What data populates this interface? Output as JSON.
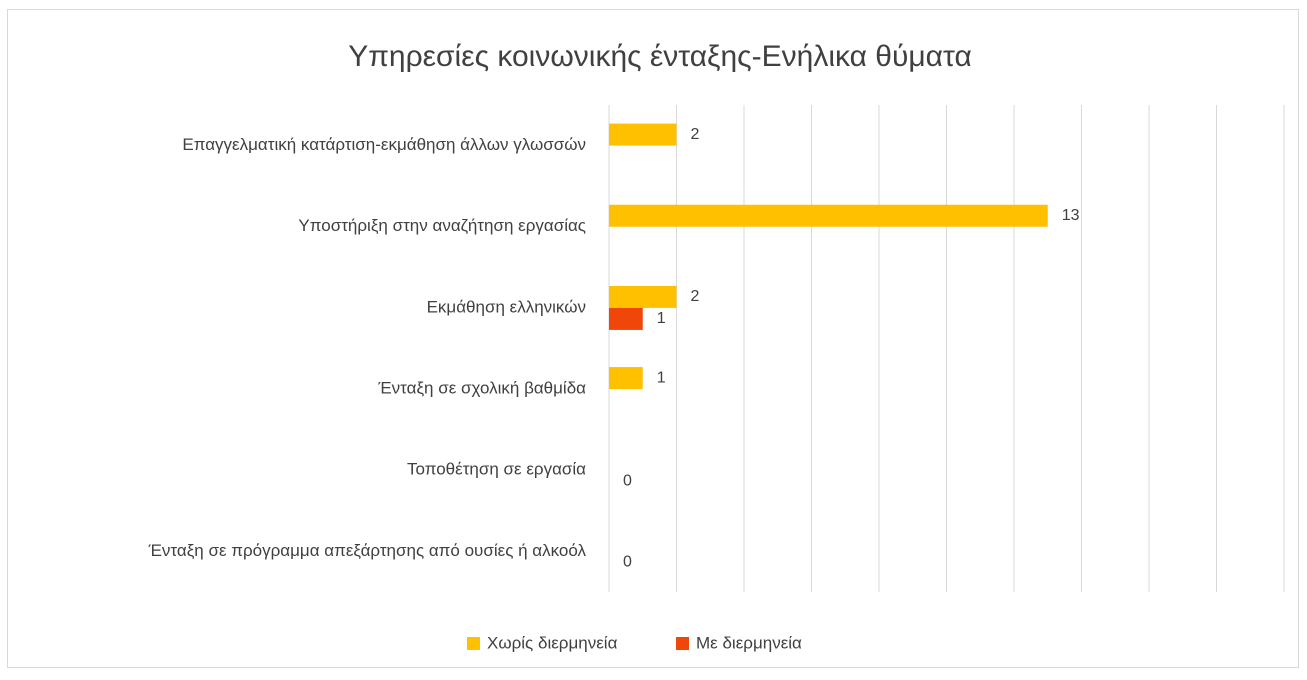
{
  "chart_data": {
    "type": "hbar",
    "title": "Υπηρεσίες κοινωνικής ένταξης-Ενήλικα θύματα",
    "categories": [
      "Επαγγελματική κατάρτιση-εκμάθηση άλλων γλωσσών",
      "Υποστήριξη στην αναζήτηση εργασίας",
      "Εκμάθηση ελληνικών",
      "Ένταξη σε σχολική βαθμίδα",
      "Τοποθέτηση σε εργασία",
      "Ένταξη σε πρόγραμμα απεξάρτησης από ουσίες ή αλκοόλ"
    ],
    "series": [
      {
        "name": "Χωρίς διερμηνεία",
        "color": "#ffc000",
        "values": [
          2,
          13,
          2,
          1,
          null,
          null
        ]
      },
      {
        "name": "Με διερμηνεία",
        "color": "#f0460a",
        "values": [
          null,
          null,
          1,
          null,
          0,
          0
        ]
      }
    ],
    "xlim": [
      0,
      20
    ],
    "xticks": [
      0,
      2,
      4,
      6,
      8,
      10,
      12,
      14,
      16,
      18,
      20
    ],
    "grid": true,
    "legend": "bottom"
  }
}
